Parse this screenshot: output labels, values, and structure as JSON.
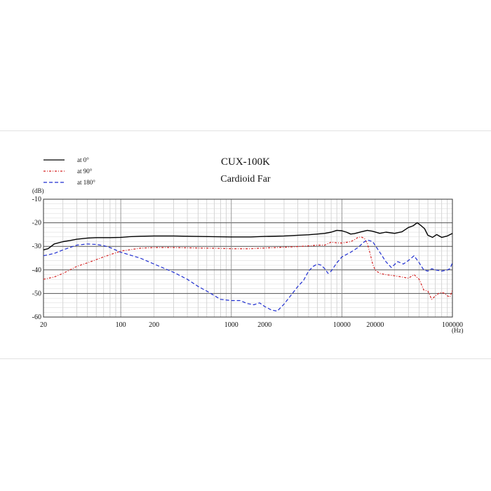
{
  "chart_data": {
    "type": "line",
    "title": "CUX-100K",
    "subtitle": "Cardioid Far",
    "ylabel": "(dB)",
    "xlabel": "(Hz)",
    "x_scale": "log",
    "xlim": [
      20,
      100000
    ],
    "ylim": [
      -60,
      -10
    ],
    "xticks": [
      20,
      100,
      200,
      1000,
      2000,
      10000,
      20000,
      100000
    ],
    "xtick_labels": [
      "20",
      "100",
      "200",
      "1000",
      "2000",
      "10000",
      "20000",
      "100000"
    ],
    "yticks": [
      -10,
      -20,
      -30,
      -40,
      -50,
      -60
    ],
    "ytick_labels": [
      "-10",
      "-20",
      "-30",
      "-40",
      "-50",
      "-60"
    ],
    "grid": true,
    "legend": "top-left",
    "series": [
      {
        "name": "at 0°",
        "color": "#000000",
        "dash": "solid",
        "x": [
          20,
          22,
          25,
          30,
          35,
          40,
          50,
          60,
          80,
          100,
          120,
          150,
          200,
          300,
          500,
          700,
          1000,
          1500,
          2000,
          3000,
          4000,
          5000,
          6000,
          7000,
          8000,
          9000,
          10000,
          11000,
          12000,
          13000,
          15000,
          17000,
          19000,
          22000,
          25000,
          30000,
          35000,
          40000,
          44000,
          48000,
          52000,
          56000,
          60000,
          66000,
          72000,
          80000,
          90000,
          100000
        ],
        "y": [
          -31.5,
          -31,
          -29,
          -28,
          -27.5,
          -27,
          -26.5,
          -26.3,
          -26.3,
          -26.2,
          -25.9,
          -25.7,
          -25.6,
          -25.6,
          -25.8,
          -25.9,
          -26,
          -26,
          -25.8,
          -25.6,
          -25.3,
          -25.1,
          -24.8,
          -24.5,
          -24,
          -23.2,
          -23.4,
          -24,
          -24.8,
          -24.6,
          -23.8,
          -23.2,
          -23.6,
          -24.5,
          -24,
          -24.5,
          -23.8,
          -22,
          -21.3,
          -20,
          -21.2,
          -22.5,
          -25.3,
          -26.2,
          -25,
          -26.2,
          -25.6,
          -24.5
        ]
      },
      {
        "name": "at 90°",
        "color": "#d42020",
        "dash": "dashdot",
        "x": [
          20,
          25,
          30,
          40,
          50,
          70,
          100,
          150,
          200,
          300,
          500,
          700,
          1000,
          1500,
          2000,
          3000,
          4000,
          5000,
          6000,
          7000,
          8000,
          9000,
          10000,
          11000,
          12000,
          13000,
          14000,
          15000,
          16000,
          17000,
          18000,
          19000,
          20000,
          22000,
          25000,
          30000,
          35000,
          40000,
          45000,
          50000,
          55000,
          60000,
          65000,
          70000,
          75000,
          80000,
          85000,
          90000,
          95000,
          100000
        ],
        "y": [
          -44,
          -43,
          -41.5,
          -38.5,
          -37,
          -34.5,
          -32,
          -30.8,
          -30.5,
          -30.5,
          -30.7,
          -30.8,
          -31,
          -31,
          -30.7,
          -30.4,
          -30.1,
          -29.8,
          -29.5,
          -29.5,
          -28.2,
          -28.5,
          -28.6,
          -28.3,
          -28,
          -27.2,
          -26.2,
          -26,
          -26.7,
          -28.8,
          -33,
          -37.5,
          -40,
          -41.5,
          -42,
          -42.5,
          -43,
          -43.5,
          -42,
          -44,
          -48.5,
          -49,
          -52.5,
          -51,
          -50,
          -49.5,
          -50,
          -51,
          -51.5,
          -48.5
        ]
      },
      {
        "name": "at 180°",
        "color": "#1f2ed0",
        "dash": "dashed",
        "x": [
          20,
          25,
          30,
          40,
          50,
          60,
          70,
          80,
          100,
          150,
          200,
          300,
          400,
          500,
          600,
          800,
          1000,
          1200,
          1400,
          1600,
          1800,
          2000,
          2300,
          2600,
          3000,
          3500,
          4000,
          4500,
          5000,
          5500,
          6000,
          6500,
          7000,
          7500,
          8000,
          9000,
          10000,
          12000,
          14000,
          16000,
          17000,
          19000,
          22000,
          25000,
          28000,
          32000,
          36000,
          40000,
          45000,
          50000,
          55000,
          60000,
          65000,
          70000,
          80000,
          90000,
          95000,
          100000
        ],
        "y": [
          -34,
          -33,
          -31.5,
          -29.5,
          -29,
          -29.2,
          -29.7,
          -30.5,
          -32.5,
          -35,
          -37.5,
          -41,
          -44,
          -47,
          -49,
          -52.5,
          -53,
          -53,
          -54.3,
          -54.8,
          -54,
          -55.5,
          -57,
          -57.5,
          -54.5,
          -50.5,
          -47,
          -44.5,
          -40.5,
          -38.5,
          -37.5,
          -38,
          -39.5,
          -41.5,
          -40.5,
          -37,
          -34.5,
          -32.5,
          -30.5,
          -28,
          -27.3,
          -28,
          -32.5,
          -36.5,
          -39,
          -36.5,
          -37.5,
          -36,
          -34,
          -37,
          -40,
          -40.5,
          -39.5,
          -40,
          -40.5,
          -40,
          -39.5,
          -37
        ]
      }
    ]
  }
}
